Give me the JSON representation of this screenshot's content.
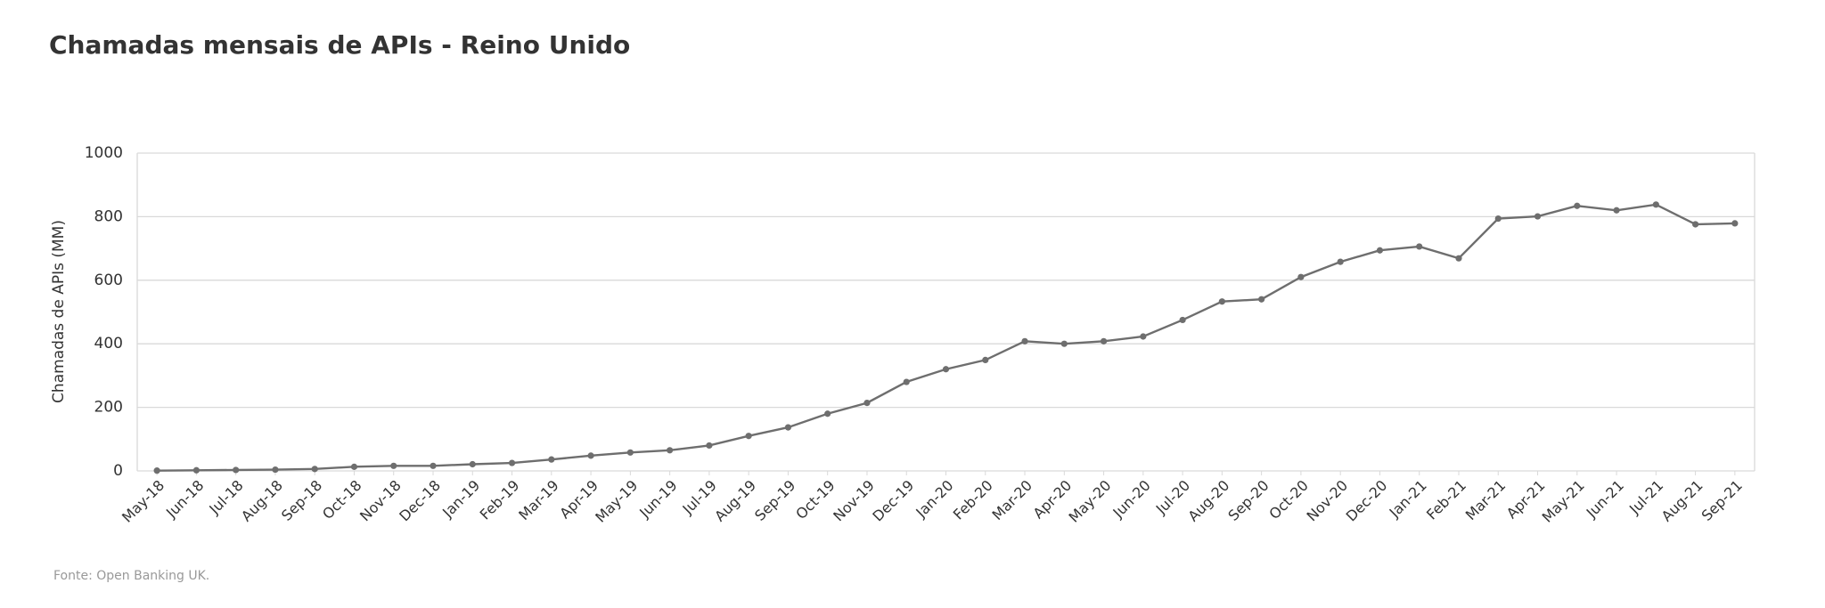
{
  "chart_data": {
    "type": "line",
    "title": "Chamadas mensais de APIs - Reino Unido",
    "y_label": "Chamadas de APIs (MM)",
    "source": "Fonte: Open Banking UK.",
    "categories": [
      "May-18",
      "Jun-18",
      "Jul-18",
      "Aug-18",
      "Sep-18",
      "Oct-18",
      "Nov-18",
      "Dec-18",
      "Jan-19",
      "Feb-19",
      "Mar-19",
      "Apr-19",
      "May-19",
      "Jun-19",
      "Jul-19",
      "Aug-19",
      "Sep-19",
      "Oct-19",
      "Nov-19",
      "Dec-19",
      "Jan-20",
      "Feb-20",
      "Mar-20",
      "Apr-20",
      "May-20",
      "Jun-20",
      "Jul-20",
      "Aug-20",
      "Sep-20",
      "Oct-20",
      "Nov-20",
      "Dec-20",
      "Jan-21",
      "Feb-21",
      "Mar-21",
      "Apr-21",
      "May-21",
      "Jun-21",
      "Jul-21",
      "Aug-21",
      "Sep-21"
    ],
    "values": [
      1,
      2,
      3,
      4,
      6,
      13,
      16,
      16,
      21,
      25,
      36,
      48,
      58,
      65,
      80,
      110,
      137,
      180,
      214,
      280,
      320,
      349,
      408,
      400,
      408,
      423,
      475,
      533,
      540,
      610,
      658,
      694,
      706,
      669,
      794,
      801,
      834,
      820,
      838,
      776,
      779
    ],
    "color": "#6e6e6e",
    "ylim": [
      0,
      1000
    ],
    "yticks": [
      0,
      200,
      400,
      600,
      800,
      1000
    ],
    "grid": true
  }
}
